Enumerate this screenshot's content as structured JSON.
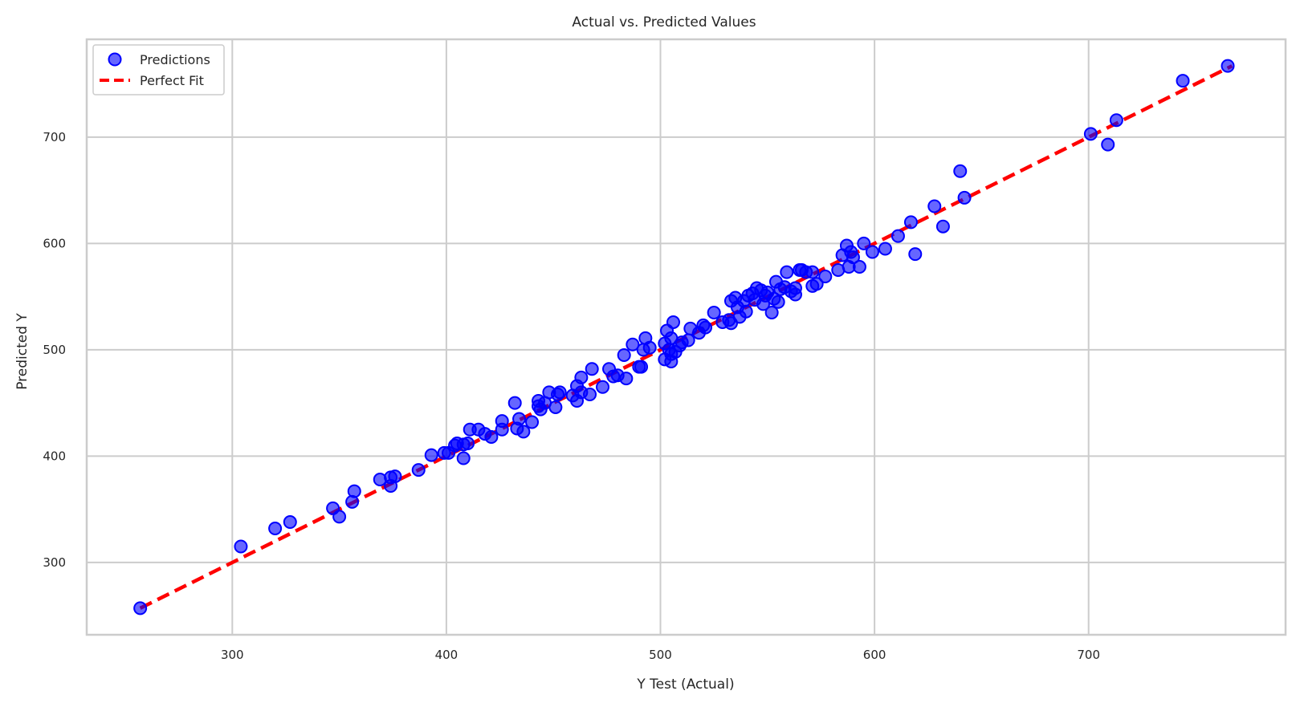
{
  "chart_data": {
    "type": "scatter",
    "title": "Actual vs. Predicted Values",
    "xlabel": "Y Test (Actual)",
    "ylabel": "Predicted Y",
    "xlim": [
      232,
      792
    ],
    "ylim": [
      232,
      792
    ],
    "xticks": [
      300,
      400,
      500,
      600,
      700
    ],
    "yticks": [
      300,
      400,
      500,
      600,
      700
    ],
    "grid": true,
    "legend_placement": "top-left",
    "legend": [
      {
        "label": "Predictions",
        "kind": "marker",
        "color": "#0000ff"
      },
      {
        "label": "Perfect Fit",
        "kind": "dashed-line",
        "color": "#ff0000"
      }
    ],
    "colors": {
      "points": "#0000ff",
      "fit_line": "#ff0000",
      "grid": "#cccccc",
      "spine": "#cccccc"
    },
    "series": [
      {
        "name": "Predictions",
        "points": [
          [
            257,
            257
          ],
          [
            304,
            315
          ],
          [
            320,
            332
          ],
          [
            327,
            338
          ],
          [
            347,
            351
          ],
          [
            350,
            343
          ],
          [
            356,
            357
          ],
          [
            357,
            367
          ],
          [
            369,
            378
          ],
          [
            374,
            380
          ],
          [
            374,
            372
          ],
          [
            376,
            381
          ],
          [
            387,
            387
          ],
          [
            393,
            401
          ],
          [
            399,
            403
          ],
          [
            401,
            403
          ],
          [
            404,
            410
          ],
          [
            405,
            412
          ],
          [
            408,
            411
          ],
          [
            408,
            398
          ],
          [
            410,
            412
          ],
          [
            411,
            425
          ],
          [
            415,
            425
          ],
          [
            418,
            421
          ],
          [
            421,
            418
          ],
          [
            426,
            425
          ],
          [
            426,
            433
          ],
          [
            432,
            450
          ],
          [
            433,
            426
          ],
          [
            434,
            435
          ],
          [
            436,
            423
          ],
          [
            440,
            432
          ],
          [
            443,
            447
          ],
          [
            443,
            452
          ],
          [
            444,
            444
          ],
          [
            446,
            450
          ],
          [
            448,
            460
          ],
          [
            451,
            446
          ],
          [
            452,
            458
          ],
          [
            453,
            460
          ],
          [
            459,
            457
          ],
          [
            461,
            452
          ],
          [
            461,
            466
          ],
          [
            463,
            474
          ],
          [
            463,
            460
          ],
          [
            467,
            458
          ],
          [
            468,
            482
          ],
          [
            473,
            465
          ],
          [
            476,
            482
          ],
          [
            478,
            475
          ],
          [
            480,
            476
          ],
          [
            483,
            495
          ],
          [
            484,
            473
          ],
          [
            487,
            505
          ],
          [
            490,
            484
          ],
          [
            491,
            484
          ],
          [
            492,
            500
          ],
          [
            493,
            511
          ],
          [
            495,
            502
          ],
          [
            502,
            506
          ],
          [
            502,
            491
          ],
          [
            503,
            518
          ],
          [
            504,
            500
          ],
          [
            505,
            496
          ],
          [
            505,
            511
          ],
          [
            505,
            489
          ],
          [
            506,
            526
          ],
          [
            507,
            498
          ],
          [
            509,
            504
          ],
          [
            510,
            507
          ],
          [
            513,
            509
          ],
          [
            514,
            520
          ],
          [
            518,
            516
          ],
          [
            520,
            523
          ],
          [
            521,
            521
          ],
          [
            525,
            535
          ],
          [
            529,
            526
          ],
          [
            532,
            528
          ],
          [
            533,
            546
          ],
          [
            533,
            525
          ],
          [
            535,
            549
          ],
          [
            536,
            540
          ],
          [
            537,
            531
          ],
          [
            539,
            546
          ],
          [
            540,
            536
          ],
          [
            541,
            551
          ],
          [
            543,
            553
          ],
          [
            544,
            547
          ],
          [
            545,
            558
          ],
          [
            547,
            556
          ],
          [
            548,
            543
          ],
          [
            549,
            551
          ],
          [
            550,
            554
          ],
          [
            552,
            535
          ],
          [
            553,
            548
          ],
          [
            554,
            564
          ],
          [
            555,
            545
          ],
          [
            556,
            557
          ],
          [
            558,
            559
          ],
          [
            559,
            573
          ],
          [
            561,
            555
          ],
          [
            563,
            558
          ],
          [
            563,
            552
          ],
          [
            565,
            575
          ],
          [
            566,
            575
          ],
          [
            568,
            573
          ],
          [
            571,
            560
          ],
          [
            571,
            573
          ],
          [
            573,
            562
          ],
          [
            577,
            569
          ],
          [
            583,
            575
          ],
          [
            585,
            589
          ],
          [
            587,
            598
          ],
          [
            588,
            578
          ],
          [
            589,
            592
          ],
          [
            590,
            587
          ],
          [
            593,
            578
          ],
          [
            595,
            600
          ],
          [
            599,
            592
          ],
          [
            605,
            595
          ],
          [
            611,
            607
          ],
          [
            617,
            620
          ],
          [
            619,
            590
          ],
          [
            628,
            635
          ],
          [
            632,
            616
          ],
          [
            640,
            668
          ],
          [
            642,
            643
          ],
          [
            701,
            703
          ],
          [
            709,
            693
          ],
          [
            713,
            716
          ],
          [
            744,
            753
          ],
          [
            765,
            767
          ]
        ]
      },
      {
        "name": "Perfect Fit",
        "points": [
          [
            257,
            257
          ],
          [
            767,
            767
          ]
        ]
      }
    ]
  }
}
